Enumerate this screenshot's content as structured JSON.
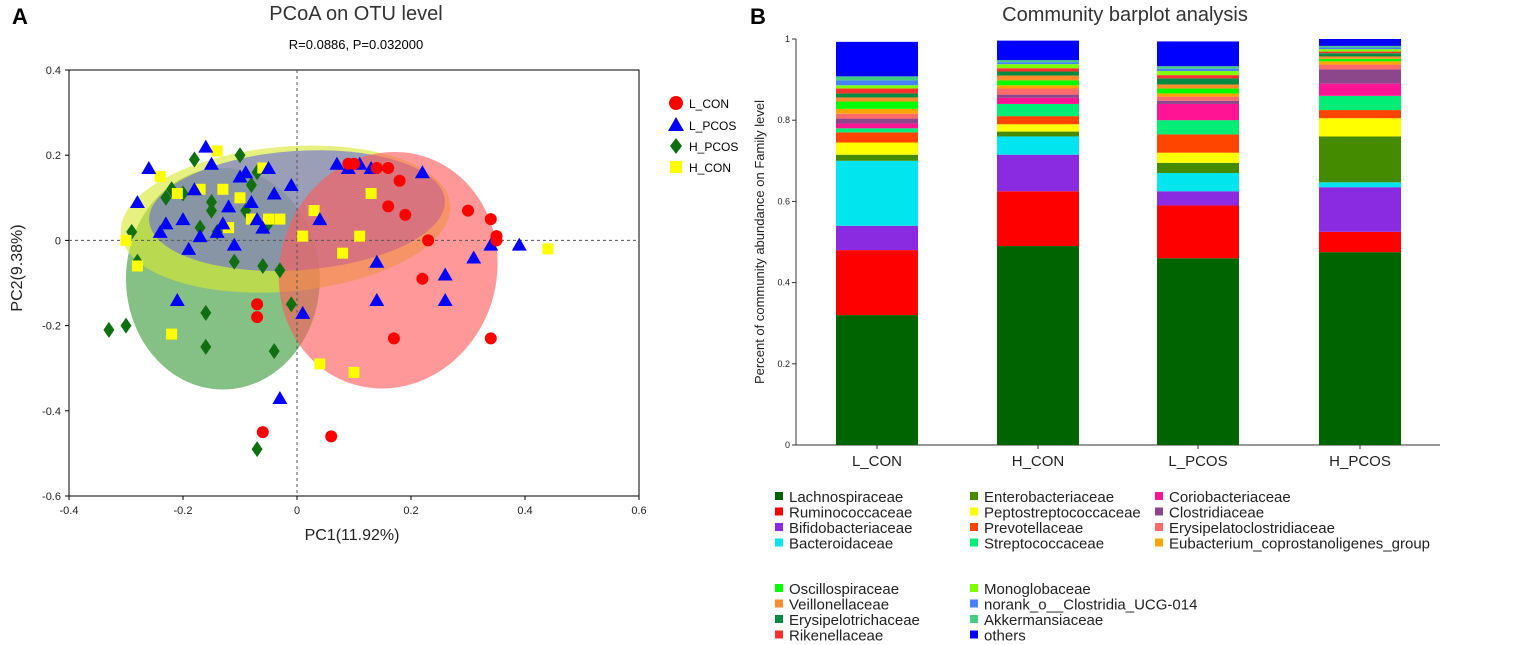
{
  "panel_a": {
    "letter": "A",
    "legend": [
      {
        "name": "L_CON",
        "color": "#ff0000",
        "marker": "circle"
      },
      {
        "name": "L_PCOS",
        "color": "#0000ff",
        "marker": "triangle"
      },
      {
        "name": "H_PCOS",
        "color": "#107010",
        "marker": "diamond"
      },
      {
        "name": "H_CON",
        "color": "#ffff00",
        "marker": "square"
      }
    ]
  },
  "panel_b": {
    "letter": "B"
  },
  "chart_data": [
    {
      "type": "scatter",
      "title": "PCoA on OTU level",
      "subtitle": "R=0.0886, P=0.032000",
      "xlabel": "PC1(11.92%)",
      "ylabel": "PC2(9.38%)",
      "xlim": [
        -0.4,
        0.6
      ],
      "ylim": [
        -0.6,
        0.4
      ],
      "xticks": [
        "-0.4",
        "-0.2",
        "0",
        "0.2",
        "0.4",
        "0.6"
      ],
      "yticks": [
        "-0.6",
        "-0.4",
        "-0.2",
        "0",
        "0.2",
        "0.4"
      ],
      "ellipses": [
        {
          "group": "H_PCOS",
          "color": "#3a9a3a",
          "cx": -0.13,
          "cy": -0.09,
          "rx": 0.17,
          "ry": 0.26,
          "angle": 0
        },
        {
          "group": "H_CON",
          "color": "#d8e830",
          "cx": -0.02,
          "cy": 0.05,
          "rx": 0.29,
          "ry": 0.17,
          "angle": -5
        },
        {
          "group": "L_PCOS",
          "color": "#6a6ad8",
          "cx": 0.0,
          "cy": 0.07,
          "rx": 0.26,
          "ry": 0.14,
          "angle": -4
        },
        {
          "group": "L_CON",
          "color": "#ff5a5a",
          "cx": 0.16,
          "cy": -0.07,
          "rx": 0.19,
          "ry": 0.28,
          "angle": 18
        }
      ],
      "series": [
        {
          "name": "H_PCOS",
          "marker": "diamond",
          "color": "#107010",
          "x": [
            -0.33,
            -0.3,
            -0.29,
            -0.28,
            -0.23,
            -0.22,
            -0.2,
            -0.18,
            -0.17,
            -0.16,
            -0.16,
            -0.15,
            -0.15,
            -0.14,
            -0.11,
            -0.1,
            -0.09,
            -0.08,
            -0.07,
            -0.07,
            -0.06,
            -0.05,
            -0.04,
            -0.03,
            -0.01
          ],
          "y": [
            -0.21,
            -0.2,
            0.02,
            -0.05,
            0.1,
            0.12,
            0.11,
            0.19,
            0.03,
            -0.25,
            -0.17,
            0.07,
            0.09,
            0.02,
            -0.05,
            0.2,
            0.07,
            0.13,
            0.16,
            -0.49,
            -0.06,
            0.04,
            -0.26,
            -0.07,
            -0.15
          ]
        },
        {
          "name": "H_CON",
          "marker": "square",
          "color": "#ffff00",
          "x": [
            -0.28,
            -0.24,
            -0.22,
            -0.21,
            -0.17,
            -0.14,
            -0.13,
            -0.12,
            -0.1,
            -0.08,
            -0.06,
            -0.05,
            -0.03,
            0.01,
            0.03,
            0.08,
            0.1,
            0.11,
            0.13,
            0.44,
            -0.3,
            0.04
          ],
          "y": [
            -0.06,
            0.15,
            -0.22,
            0.11,
            0.12,
            0.21,
            0.12,
            0.03,
            0.1,
            0.05,
            0.17,
            0.05,
            0.05,
            0.01,
            0.07,
            -0.03,
            -0.31,
            0.01,
            0.11,
            -0.02,
            0.0,
            -0.29
          ]
        },
        {
          "name": "L_PCOS",
          "marker": "triangle",
          "color": "#0000ff",
          "x": [
            -0.28,
            -0.26,
            -0.24,
            -0.23,
            -0.21,
            -0.2,
            -0.19,
            -0.18,
            -0.17,
            -0.16,
            -0.15,
            -0.14,
            -0.13,
            -0.12,
            -0.11,
            -0.1,
            -0.09,
            -0.08,
            -0.07,
            -0.06,
            -0.05,
            -0.04,
            -0.03,
            -0.01,
            0.01,
            0.04,
            0.07,
            0.09,
            0.11,
            0.13,
            0.14,
            0.14,
            0.22,
            0.26,
            0.26,
            0.31,
            0.34,
            0.39
          ],
          "y": [
            0.09,
            0.17,
            0.02,
            0.04,
            -0.14,
            0.05,
            -0.02,
            0.12,
            0.01,
            0.22,
            0.18,
            0.02,
            0.04,
            0.08,
            -0.01,
            0.15,
            0.16,
            0.09,
            0.05,
            0.03,
            0.17,
            0.11,
            -0.37,
            0.13,
            -0.17,
            0.05,
            0.18,
            0.17,
            0.18,
            0.17,
            -0.05,
            -0.14,
            0.16,
            -0.08,
            -0.14,
            -0.04,
            -0.01,
            -0.01
          ]
        },
        {
          "name": "L_CON",
          "marker": "circle",
          "color": "#ff0000",
          "x": [
            -0.07,
            -0.07,
            -0.06,
            0.06,
            0.09,
            0.1,
            0.14,
            0.16,
            0.16,
            0.17,
            0.18,
            0.19,
            0.22,
            0.23,
            0.3,
            0.34,
            0.34,
            0.35,
            0.35
          ],
          "y": [
            -0.15,
            -0.18,
            -0.45,
            -0.46,
            0.18,
            0.18,
            0.17,
            0.08,
            0.17,
            -0.23,
            0.14,
            0.06,
            -0.09,
            0.0,
            0.07,
            0.05,
            -0.23,
            0.01,
            0.0
          ]
        }
      ]
    },
    {
      "type": "bar",
      "stacked": true,
      "title": "Community barplot analysis",
      "ylabel": "Percent of community abundance on Family level",
      "ylim": [
        0,
        1
      ],
      "yticks": [
        "0",
        "0.2",
        "0.4",
        "0.6",
        "0.8",
        "1"
      ],
      "categories": [
        "L_CON",
        "H_CON",
        "L_PCOS",
        "H_PCOS"
      ],
      "series": [
        {
          "name": "Lachnospiraceae",
          "color": "#006400",
          "values": [
            0.32,
            0.49,
            0.46,
            0.475
          ]
        },
        {
          "name": "Ruminococcaceae",
          "color": "#ff0000",
          "values": [
            0.16,
            0.135,
            0.13,
            0.05
          ]
        },
        {
          "name": "Bifidobacteriaceae",
          "color": "#8a2be2",
          "values": [
            0.06,
            0.09,
            0.035,
            0.11
          ]
        },
        {
          "name": "Bacteroidaceae",
          "color": "#00e5ee",
          "values": [
            0.16,
            0.045,
            0.045,
            0.012
          ]
        },
        {
          "name": "Enterobacteriaceae",
          "color": "#458b00",
          "values": [
            0.015,
            0.012,
            0.025,
            0.113
          ]
        },
        {
          "name": "Peptostreptococcaceae",
          "color": "#ffff00",
          "values": [
            0.03,
            0.018,
            0.025,
            0.045
          ]
        },
        {
          "name": "Prevotellaceae",
          "color": "#ff4500",
          "values": [
            0.025,
            0.02,
            0.045,
            0.02
          ]
        },
        {
          "name": "Streptococcaceae",
          "color": "#00ee76",
          "values": [
            0.01,
            0.03,
            0.035,
            0.035
          ]
        },
        {
          "name": "Coriobacteriaceae",
          "color": "#ff1493",
          "values": [
            0.012,
            0.015,
            0.04,
            0.03
          ]
        },
        {
          "name": "Clostridiaceae",
          "color": "#8b4789",
          "values": [
            0.012,
            0.008,
            0.008,
            0.035
          ]
        },
        {
          "name": "Erysipelatoclostridiaceae",
          "color": "#ff6a6a",
          "values": [
            0.012,
            0.015,
            0.01,
            0.012
          ]
        },
        {
          "name": "Eubacterium_coprostanoligenes_group",
          "color": "#ffa500",
          "values": [
            0.012,
            0.008,
            0.008,
            0.008
          ]
        },
        {
          "name": "Oscillospiraceae",
          "color": "#00ff00",
          "values": [
            0.018,
            0.012,
            0.012,
            0.006
          ]
        },
        {
          "name": "Veillonellaceae",
          "color": "#ff8c2a",
          "values": [
            0.01,
            0.012,
            0.01,
            0.006
          ]
        },
        {
          "name": "Erysipelotrichaceae",
          "color": "#008b45",
          "values": [
            0.01,
            0.01,
            0.015,
            0.008
          ]
        },
        {
          "name": "Rikenellaceae",
          "color": "#ff3030",
          "values": [
            0.012,
            0.008,
            0.008,
            0.004
          ]
        },
        {
          "name": "Monoglobaceae",
          "color": "#7fff00",
          "values": [
            0.008,
            0.01,
            0.01,
            0.006
          ]
        },
        {
          "name": "norank_o__Clostridia_UCG-014",
          "color": "#4682ff",
          "values": [
            0.012,
            0.005,
            0.006,
            0.004
          ]
        },
        {
          "name": "Akkermansiaceae",
          "color": "#43cd80",
          "values": [
            0.01,
            0.005,
            0.006,
            0.004
          ]
        },
        {
          "name": "others",
          "color": "#0000ff",
          "values": [
            0.085,
            0.048,
            0.061,
            0.027
          ]
        }
      ]
    }
  ]
}
